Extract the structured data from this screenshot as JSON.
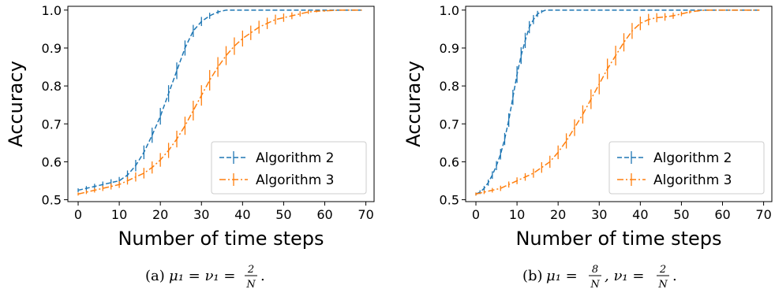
{
  "chart_data": [
    {
      "type": "line",
      "caption_prefix": "(a)",
      "caption_math": {
        "lhs": "μ₁ = ν₁ =",
        "num": "2",
        "den": "N",
        "tail": "."
      },
      "xlabel": "Number of time steps",
      "ylabel": "Accuracy",
      "xlim": [
        -2.5,
        72
      ],
      "ylim": [
        0.495,
        1.01
      ],
      "xticks": [
        0,
        10,
        20,
        30,
        40,
        50,
        60,
        70
      ],
      "yticks": [
        0.5,
        0.6,
        0.7,
        0.8,
        0.9,
        1.0
      ],
      "ytick_labels": [
        "0.5",
        "0.6",
        "0.7",
        "0.8",
        "0.9",
        "1.0"
      ],
      "legend": "bottom-right",
      "series": [
        {
          "name": "Algorithm 2",
          "color": "#1f77b4",
          "style": "dashed",
          "x": [
            0,
            2,
            4,
            6,
            8,
            10,
            12,
            14,
            16,
            18,
            20,
            22,
            24,
            26,
            28,
            30,
            32,
            34,
            36,
            40,
            50,
            60,
            69
          ],
          "y": [
            0.525,
            0.53,
            0.535,
            0.54,
            0.545,
            0.55,
            0.565,
            0.59,
            0.625,
            0.67,
            0.72,
            0.78,
            0.84,
            0.9,
            0.945,
            0.97,
            0.985,
            0.995,
            1.0,
            1.0,
            1.0,
            1.0,
            1.0
          ],
          "err": [
            0.005,
            0.006,
            0.007,
            0.008,
            0.009,
            0.01,
            0.012,
            0.015,
            0.018,
            0.02,
            0.022,
            0.022,
            0.022,
            0.02,
            0.016,
            0.012,
            0.008,
            0.005,
            0.0,
            0.0,
            0.0,
            0.0,
            0.0
          ]
        },
        {
          "name": "Algorithm 3",
          "color": "#ff7f0e",
          "style": "dashdot",
          "x": [
            0,
            2,
            4,
            6,
            8,
            10,
            12,
            14,
            16,
            18,
            20,
            22,
            24,
            26,
            28,
            30,
            32,
            34,
            36,
            38,
            40,
            42,
            44,
            46,
            48,
            50,
            52,
            54,
            56,
            58,
            60,
            62,
            64,
            66,
            69
          ],
          "y": [
            0.515,
            0.52,
            0.525,
            0.53,
            0.535,
            0.54,
            0.55,
            0.56,
            0.57,
            0.585,
            0.605,
            0.63,
            0.66,
            0.695,
            0.735,
            0.775,
            0.815,
            0.85,
            0.88,
            0.905,
            0.925,
            0.94,
            0.955,
            0.965,
            0.975,
            0.98,
            0.985,
            0.99,
            0.995,
            0.997,
            0.998,
            0.999,
            1.0,
            1.0,
            1.0
          ],
          "err": [
            0.004,
            0.005,
            0.006,
            0.007,
            0.008,
            0.009,
            0.01,
            0.012,
            0.014,
            0.016,
            0.018,
            0.02,
            0.022,
            0.024,
            0.026,
            0.027,
            0.027,
            0.026,
            0.025,
            0.023,
            0.021,
            0.019,
            0.017,
            0.015,
            0.013,
            0.011,
            0.009,
            0.007,
            0.005,
            0.003,
            0.002,
            0.001,
            0.0,
            0.0,
            0.0
          ]
        }
      ]
    },
    {
      "type": "line",
      "caption_prefix": "(b)",
      "caption_math": {
        "lhs": "μ₁ =",
        "num": "8",
        "den": "N",
        "mid": ",  ν₁ =",
        "num2": "2",
        "den2": "N",
        "tail": "."
      },
      "xlabel": "Number of time steps",
      "ylabel": "Accuracy",
      "xlim": [
        -2.5,
        72
      ],
      "ylim": [
        0.495,
        1.01
      ],
      "xticks": [
        0,
        10,
        20,
        30,
        40,
        50,
        60,
        70
      ],
      "yticks": [
        0.5,
        0.6,
        0.7,
        0.8,
        0.9,
        1.0
      ],
      "ytick_labels": [
        "0.5",
        "0.6",
        "0.7",
        "0.8",
        "0.9",
        "1.0"
      ],
      "legend": "bottom-right",
      "series": [
        {
          "name": "Algorithm 2",
          "color": "#1f77b4",
          "style": "dashed",
          "x": [
            0,
            1,
            2,
            3,
            4,
            5,
            6,
            7,
            8,
            9,
            10,
            11,
            12,
            13,
            14,
            15,
            16,
            17,
            18,
            20,
            30,
            40,
            50,
            60,
            69
          ],
          "y": [
            0.515,
            0.52,
            0.53,
            0.545,
            0.565,
            0.59,
            0.62,
            0.66,
            0.71,
            0.77,
            0.83,
            0.88,
            0.92,
            0.955,
            0.975,
            0.99,
            0.996,
            1.0,
            1.0,
            1.0,
            1.0,
            1.0,
            1.0,
            1.0,
            1.0
          ],
          "err": [
            0.004,
            0.005,
            0.006,
            0.008,
            0.01,
            0.012,
            0.014,
            0.016,
            0.018,
            0.02,
            0.022,
            0.022,
            0.02,
            0.016,
            0.012,
            0.008,
            0.004,
            0.0,
            0.0,
            0.0,
            0.0,
            0.0,
            0.0,
            0.0,
            0.0
          ]
        },
        {
          "name": "Algorithm 3",
          "color": "#ff7f0e",
          "style": "dashdot",
          "x": [
            0,
            2,
            4,
            6,
            8,
            10,
            12,
            14,
            16,
            18,
            20,
            22,
            24,
            26,
            28,
            30,
            32,
            34,
            36,
            38,
            40,
            42,
            44,
            46,
            48,
            50,
            52,
            54,
            56,
            60,
            64,
            69
          ],
          "y": [
            0.515,
            0.52,
            0.525,
            0.53,
            0.54,
            0.55,
            0.56,
            0.57,
            0.585,
            0.6,
            0.625,
            0.655,
            0.69,
            0.725,
            0.765,
            0.805,
            0.845,
            0.88,
            0.915,
            0.945,
            0.965,
            0.975,
            0.98,
            0.982,
            0.985,
            0.99,
            0.995,
            0.998,
            1.0,
            1.0,
            1.0,
            1.0
          ],
          "err": [
            0.004,
            0.005,
            0.006,
            0.007,
            0.008,
            0.009,
            0.01,
            0.012,
            0.014,
            0.016,
            0.018,
            0.02,
            0.022,
            0.024,
            0.026,
            0.027,
            0.027,
            0.026,
            0.024,
            0.021,
            0.018,
            0.015,
            0.012,
            0.01,
            0.008,
            0.006,
            0.004,
            0.002,
            0.0,
            0.0,
            0.0,
            0.0
          ]
        }
      ]
    }
  ]
}
